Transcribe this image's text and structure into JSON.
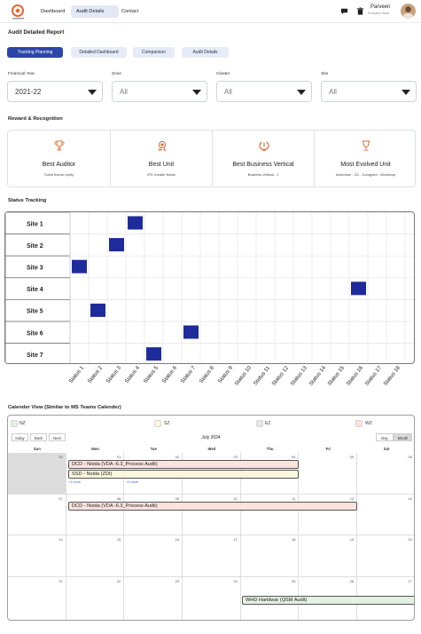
{
  "nav": {
    "items": [
      "Dashboard",
      "Audit Details",
      "Contact"
    ],
    "active_index": 1,
    "user_name": "Parveen",
    "user_role": "Executive Head",
    "icons": [
      "chat-icon",
      "trash-icon"
    ]
  },
  "page_title": "Audit Detailed Report",
  "tabs": [
    "Tracking Planning",
    "Detailed Dashboard",
    "Comparison",
    "Audit Details"
  ],
  "active_tab": 0,
  "filters": [
    {
      "label": "Financial Year",
      "value": "2021-22"
    },
    {
      "label": "Zone",
      "value": "All"
    },
    {
      "label": "Cluster",
      "value": "All"
    },
    {
      "label": "Site",
      "value": "All"
    }
  ],
  "rewards": {
    "title": "Reward & Recognition",
    "items": [
      {
        "title": "Best Auditor",
        "subtitle": "Sumit Kumar Uprity",
        "icon": "trophy-icon"
      },
      {
        "title": "Best Unit",
        "subtitle": "IPD Greater Noida",
        "icon": "medal-icon"
      },
      {
        "title": "Best Business Vertical",
        "subtitle": "Business Vertical - 1",
        "icon": "laurel-icon"
      },
      {
        "title": "Most Evolved Unit",
        "subtitle": "Adventure - CD - Gurugram - Workshop",
        "icon": "cup-icon"
      }
    ],
    "accent": "#e8662f"
  },
  "status_tracking": {
    "title": "Status Tracking",
    "sites": [
      "Site 1",
      "Site 2",
      "Site 3",
      "Site 4",
      "Site 5",
      "Site 6",
      "Site 7"
    ],
    "statuses": [
      "Status 1",
      "Status 2",
      "Status 3",
      "Status 4",
      "Status 5",
      "Status 6",
      "Status 7",
      "Status 8",
      "Status 9",
      "Status 10",
      "Status 11",
      "Status 12",
      "Status 13",
      "Status 14",
      "Status 15",
      "Status 16",
      "Status 17",
      "Status 18"
    ],
    "marks": [
      {
        "site": "Site 1",
        "status": "Status 4"
      },
      {
        "site": "Site 2",
        "status": "Status 3"
      },
      {
        "site": "Site 3",
        "status": "Status 1"
      },
      {
        "site": "Site 4",
        "status": "Status 16"
      },
      {
        "site": "Site 5",
        "status": "Status 2"
      },
      {
        "site": "Site 6",
        "status": "Status 7"
      },
      {
        "site": "Site 7",
        "status": "Status 5"
      }
    ],
    "mark_color": "#1f2b9b"
  },
  "calendar": {
    "title": "Calender View (Similar to MS Teams Calender)",
    "legend": [
      {
        "label": "NZ",
        "color": "#e3f1e2"
      },
      {
        "label": "SZ",
        "color": "#fbf6dd"
      },
      {
        "label": "EZ",
        "color": "#e4e8ec"
      },
      {
        "label": "WZ",
        "color": "#fbe3dd"
      }
    ],
    "nav_buttons": [
      "today",
      "Back",
      "Next"
    ],
    "view_buttons": [
      "Day",
      "Month"
    ],
    "active_view": "Month",
    "month_label": "July 2024",
    "weekdays": [
      "Sun",
      "Mon",
      "Tue",
      "Wed",
      "Thu",
      "Fri",
      "Sat"
    ],
    "weeks": [
      [
        "30",
        "01",
        "02",
        "03",
        "04",
        "05",
        "06"
      ],
      [
        "07",
        "08",
        "09",
        "10",
        "11",
        "12",
        "13"
      ],
      [
        "14",
        "15",
        "16",
        "17",
        "18",
        "19",
        "20"
      ],
      [
        "21",
        "22",
        "23",
        "24",
        "25",
        "26",
        "27"
      ]
    ],
    "events": [
      {
        "text": "DCD - Noida (VDA -6.3_Process Audit)",
        "color": "#fbe3dd"
      },
      {
        "text": "SSD - Noida (ZDI)",
        "color": "#fbf6dd"
      },
      {
        "text": "DCD - Noida (VDA -6.3_Process Audit)",
        "color": "#fbe3dd"
      },
      {
        "text": "WHD Haridwar (QSM Audit)",
        "color": "#e3f1e2"
      }
    ],
    "more_links": [
      "+1 more",
      "+2 more"
    ]
  }
}
